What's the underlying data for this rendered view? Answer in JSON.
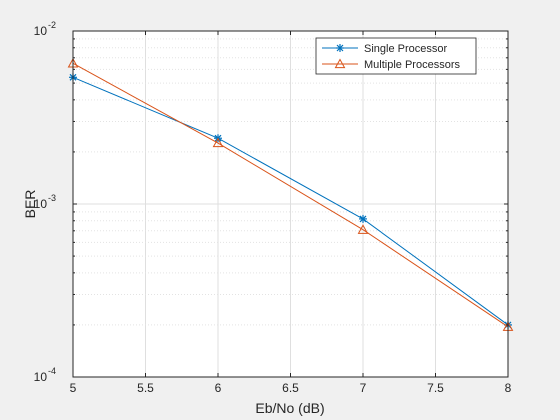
{
  "chart_data": {
    "type": "line",
    "xlabel": "Eb/No (dB)",
    "ylabel": "BER",
    "x_scale": "linear",
    "y_scale": "log",
    "xlim": [
      5,
      8
    ],
    "ylim": [
      0.0001,
      0.01
    ],
    "x_ticks": [
      5,
      5.5,
      6,
      6.5,
      7,
      7.5,
      8
    ],
    "x_tick_labels": [
      "5",
      "5.5",
      "6",
      "6.5",
      "7",
      "7.5",
      "8"
    ],
    "y_ticks": [
      0.0001,
      0.001,
      0.01
    ],
    "y_tick_labels": [
      {
        "base": "10",
        "exp": "-4"
      },
      {
        "base": "10",
        "exp": "-3"
      },
      {
        "base": "10",
        "exp": "-2"
      }
    ],
    "grid": true,
    "minor_grid": true,
    "legend_position": "top-right",
    "series": [
      {
        "name": "Single Processor",
        "color": "#0072BD",
        "marker": "asterisk",
        "x": [
          5,
          6,
          7,
          8
        ],
        "y": [
          0.0054,
          0.0024,
          0.00082,
          0.0002
        ]
      },
      {
        "name": "Multiple Processors",
        "color": "#D95319",
        "marker": "triangle",
        "x": [
          5,
          6,
          7,
          8
        ],
        "y": [
          0.0065,
          0.00225,
          0.00071,
          0.000195
        ]
      }
    ]
  }
}
